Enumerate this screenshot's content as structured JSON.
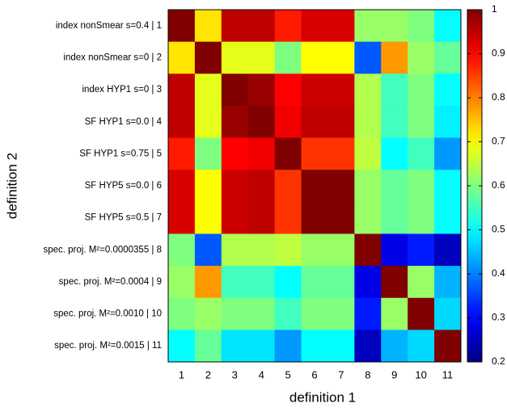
{
  "chart_data": {
    "type": "heatmap",
    "xlabel": "definition 1",
    "ylabel": "definition 2",
    "x_categories": [
      "1",
      "2",
      "3",
      "4",
      "5",
      "6",
      "7",
      "8",
      "9",
      "10",
      "11"
    ],
    "y_categories": [
      "index nonSmear s=0.4 |  1",
      "index nonSmear s=0 |  2",
      "index HYP1 s=0 |  3",
      "SF HYP1 s=0.0 |  4",
      "SF HYP1 s=0.75 |  5",
      "SF HYP5 s=0.0 |  6",
      "SF HYP5 s=0.5 |  7",
      "spec. proj. M²=0.0000355 | 8",
      "spec. proj. M²=0.0004 |  9",
      "spec. proj. M²=0.0010 | 10",
      "spec. proj. M²=0.0015 | 11"
    ],
    "values": [
      [
        1,
        0.72,
        0.95,
        0.95,
        0.88,
        0.93,
        0.93,
        0.62,
        0.62,
        0.6,
        0.5
      ],
      [
        0.72,
        1,
        0.68,
        0.68,
        0.6,
        0.7,
        0.7,
        0.37,
        0.78,
        0.62,
        0.58
      ],
      [
        0.95,
        0.68,
        1,
        0.98,
        0.9,
        0.94,
        0.94,
        0.64,
        0.55,
        0.6,
        0.5
      ],
      [
        0.95,
        0.68,
        0.98,
        1,
        0.91,
        0.95,
        0.95,
        0.64,
        0.55,
        0.6,
        0.49
      ],
      [
        0.88,
        0.6,
        0.9,
        0.91,
        1,
        0.86,
        0.86,
        0.65,
        0.5,
        0.55,
        0.42
      ],
      [
        0.93,
        0.7,
        0.94,
        0.95,
        0.86,
        1,
        1,
        0.62,
        0.58,
        0.6,
        0.5
      ],
      [
        0.93,
        0.7,
        0.94,
        0.95,
        0.86,
        1,
        1,
        0.62,
        0.58,
        0.6,
        0.5
      ],
      [
        0.6,
        0.37,
        0.64,
        0.64,
        0.65,
        0.62,
        0.62,
        1,
        0.28,
        0.32,
        0.25
      ],
      [
        0.62,
        0.78,
        0.55,
        0.55,
        0.5,
        0.58,
        0.58,
        0.28,
        1,
        0.62,
        0.44
      ],
      [
        0.6,
        0.62,
        0.6,
        0.6,
        0.55,
        0.6,
        0.6,
        0.32,
        0.62,
        1,
        0.47
      ],
      [
        0.5,
        0.58,
        0.48,
        0.48,
        0.42,
        0.5,
        0.5,
        0.25,
        0.44,
        0.47,
        1
      ]
    ],
    "colormap": "jet",
    "zlim": [
      0.2,
      1
    ],
    "zticks": [
      0.2,
      0.3,
      0.4,
      0.5,
      0.6,
      0.7,
      0.8,
      0.9,
      1
    ]
  }
}
